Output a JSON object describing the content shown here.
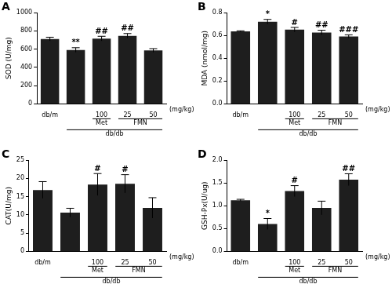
{
  "chart_data": [
    {
      "panel": "A",
      "type": "bar",
      "y_label": "SOD (U/mg)",
      "categories": [
        "db/m",
        null,
        "100",
        "25",
        "50"
      ],
      "values": [
        710,
        590,
        715,
        745,
        585
      ],
      "errors": [
        20,
        25,
        25,
        25,
        20
      ],
      "significance": [
        null,
        "**",
        "##",
        "##",
        null
      ],
      "color": "#1e1e1e",
      "ylim": [
        0,
        1000
      ],
      "yticks": [
        0,
        200,
        400,
        600,
        800,
        1000
      ],
      "grid": false,
      "unit_label": "(mg/kg)",
      "groups": [
        {
          "label": "Met",
          "from": 2,
          "to": 2
        },
        {
          "label": "FMN",
          "from": 3,
          "to": 4
        }
      ],
      "model": {
        "label": "db/db",
        "from": 1,
        "to": 4
      }
    },
    {
      "panel": "B",
      "type": "bar",
      "y_label": "MDA (nmol/mg)",
      "categories": [
        "db/m",
        null,
        "100",
        "25",
        "50"
      ],
      "values": [
        0.635,
        0.72,
        0.65,
        0.625,
        0.59
      ],
      "errors": [
        0.005,
        0.02,
        0.02,
        0.02,
        0.015
      ],
      "significance": [
        null,
        "*",
        "#",
        "##",
        "###"
      ],
      "color": "#1e1e1e",
      "ylim": [
        0,
        0.8
      ],
      "yticks": [
        {
          "value": 0,
          "label": "0.0"
        },
        0.2,
        0.4,
        0.6,
        0.8
      ],
      "grid": false,
      "unit_label": "(mg/kg)",
      "groups": [
        {
          "label": "Met",
          "from": 2,
          "to": 2
        },
        {
          "label": "FMN",
          "from": 3,
          "to": 4
        }
      ],
      "model": {
        "label": "db/db",
        "from": 1,
        "to": 4
      }
    },
    {
      "panel": "C",
      "type": "bar",
      "y_label": "CAT(U/mg)",
      "categories": [
        "db/m",
        null,
        "100",
        "25",
        "50"
      ],
      "values": [
        16.8,
        10.6,
        18.3,
        18.5,
        11.9
      ],
      "errors": [
        2.3,
        1.2,
        3,
        2.5,
        2.8
      ],
      "significance": [
        null,
        null,
        "#",
        "#",
        null
      ],
      "color": "#1e1e1e",
      "ylim": [
        0,
        25
      ],
      "yticks": [
        0,
        5,
        10,
        15,
        20,
        25
      ],
      "grid": false,
      "unit_label": "(mg/kg)",
      "groups": [
        {
          "label": "Met",
          "from": 2,
          "to": 2
        },
        {
          "label": "FMN",
          "from": 3,
          "to": 4
        }
      ],
      "model": {
        "label": "db/db",
        "from": 1,
        "to": 4
      }
    },
    {
      "panel": "D",
      "type": "bar",
      "y_label": "GSH-Px(U/ug)",
      "categories": [
        "db/m",
        null,
        "100",
        "25",
        "50"
      ],
      "values": [
        1.12,
        0.6,
        1.32,
        0.95,
        1.57
      ],
      "errors": [
        0.02,
        0.12,
        0.12,
        0.15,
        0.13
      ],
      "significance": [
        null,
        "*",
        "#",
        null,
        "##"
      ],
      "color": "#1e1e1e",
      "ylim": [
        0,
        2.0
      ],
      "yticks": [
        {
          "value": 0,
          "label": "0.0"
        },
        0.5,
        {
          "value": 1,
          "label": "1.0"
        },
        1.5,
        {
          "value": 2,
          "label": "2.0"
        }
      ],
      "grid": false,
      "unit_label": "(mg/kg)",
      "groups": [
        {
          "label": "Met",
          "from": 2,
          "to": 2
        },
        {
          "label": "FMN",
          "from": 3,
          "to": 4
        }
      ],
      "model": {
        "label": "db/db",
        "from": 1,
        "to": 4
      }
    }
  ]
}
